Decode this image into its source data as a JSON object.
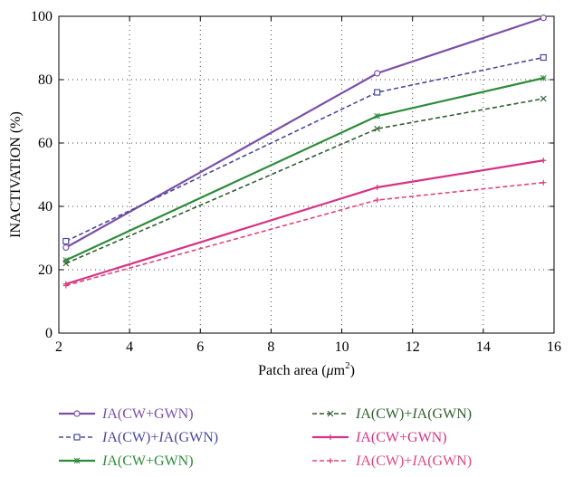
{
  "chart_data": {
    "type": "line",
    "xlabel_prefix": "Patch area (",
    "xlabel_mu": "μ",
    "xlabel_unit": "m",
    "xlabel_exp": "2",
    "xlabel_suffix": ")",
    "ylabel": "INACTIVATION (%)",
    "xlim": [
      2,
      16
    ],
    "ylim": [
      0,
      100
    ],
    "xticks": [
      2,
      4,
      6,
      8,
      10,
      12,
      14,
      16
    ],
    "yticks": [
      0,
      20,
      40,
      60,
      80,
      100
    ],
    "grid": true,
    "legend_position": "bottom",
    "x": [
      2.2,
      11.0,
      15.7
    ],
    "series": [
      {
        "name_italic": "I",
        "name_rest": "A(CW+GWN)",
        "values": [
          27,
          82,
          99.5
        ],
        "color": "#7b4fa8",
        "dash": "solid",
        "marker": "circle"
      },
      {
        "name_italic": "I",
        "name_rest": "A(CW)+",
        "name_italic2": "I",
        "name_rest2": "A(GWN)",
        "values": [
          29,
          76,
          87
        ],
        "color": "#4a4a9c",
        "dash": "dashed",
        "marker": "square"
      },
      {
        "name_italic": "I",
        "name_rest": "A(CW+GWN)",
        "values": [
          23,
          68.5,
          80.5
        ],
        "color": "#2e8b3a",
        "dash": "solid",
        "marker": "asterisk"
      },
      {
        "name_italic": "I",
        "name_rest": "A(CW)+",
        "name_italic2": "I",
        "name_rest2": "A(GWN)",
        "values": [
          22,
          64.5,
          74
        ],
        "color": "#2f5f2f",
        "dash": "dashed",
        "marker": "x"
      },
      {
        "name_italic": "I",
        "name_rest": "A(CW+GWN)",
        "values": [
          15.5,
          46,
          54.5
        ],
        "color": "#d63384",
        "dash": "solid",
        "marker": "plus"
      },
      {
        "name_italic": "I",
        "name_rest": "A(CW)+",
        "name_italic2": "I",
        "name_rest2": "A(GWN)",
        "values": [
          15,
          42,
          47.5
        ],
        "color": "#e0457b",
        "dash": "dashed",
        "marker": "plus"
      }
    ]
  }
}
